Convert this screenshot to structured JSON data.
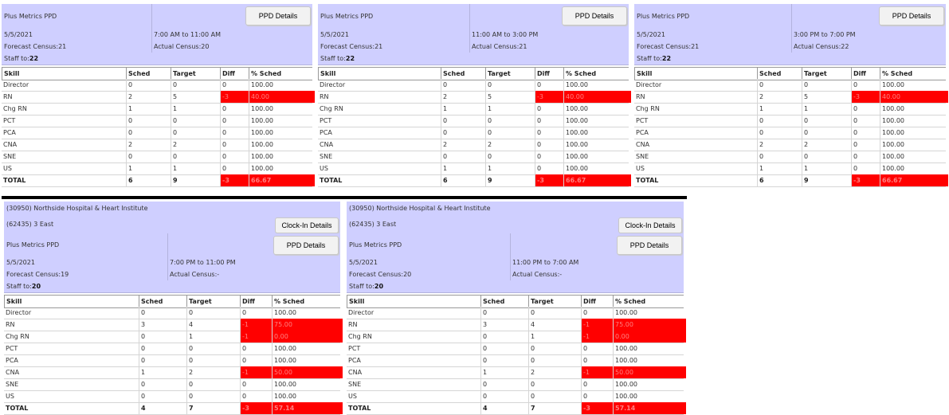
{
  "labels": {
    "plus_metrics": "Plus Metrics PPD",
    "ppd_details": "PPD Details",
    "clock_in_details": "Clock-In Details",
    "forecast_prefix": "Forecast Census: ",
    "actual_prefix": "Actual Census: ",
    "staff_prefix": "Staff to: "
  },
  "columns": [
    "Skill",
    "Sched",
    "Target",
    "Diff",
    "% Sched"
  ],
  "panels": [
    {
      "date": "5/5/2021",
      "shift": "7:00 AM to 11:00 AM",
      "forecast": "21",
      "actual": "20",
      "staff": "22",
      "rows": [
        [
          "Director",
          "0",
          "0",
          "0",
          "100.00",
          false
        ],
        [
          "RN",
          "2",
          "5",
          "-3",
          "40.00",
          true
        ],
        [
          "Chg RN",
          "1",
          "1",
          "0",
          "100.00",
          false
        ],
        [
          "PCT",
          "0",
          "0",
          "0",
          "100.00",
          false
        ],
        [
          "PCA",
          "0",
          "0",
          "0",
          "100.00",
          false
        ],
        [
          "CNA",
          "2",
          "2",
          "0",
          "100.00",
          false
        ],
        [
          "SNE",
          "0",
          "0",
          "0",
          "100.00",
          false
        ],
        [
          "US",
          "1",
          "1",
          "0",
          "100.00",
          false
        ]
      ],
      "total": [
        "TOTAL",
        "6",
        "9",
        "-3",
        "66.67",
        true
      ]
    },
    {
      "date": "5/5/2021",
      "shift": "11:00 AM to 3:00 PM",
      "forecast": "21",
      "actual": "21",
      "staff": "22",
      "rows": [
        [
          "Director",
          "0",
          "0",
          "0",
          "100.00",
          false
        ],
        [
          "RN",
          "2",
          "5",
          "-3",
          "40.00",
          true
        ],
        [
          "Chg RN",
          "1",
          "1",
          "0",
          "100.00",
          false
        ],
        [
          "PCT",
          "0",
          "0",
          "0",
          "100.00",
          false
        ],
        [
          "PCA",
          "0",
          "0",
          "0",
          "100.00",
          false
        ],
        [
          "CNA",
          "2",
          "2",
          "0",
          "100.00",
          false
        ],
        [
          "SNE",
          "0",
          "0",
          "0",
          "100.00",
          false
        ],
        [
          "US",
          "1",
          "1",
          "0",
          "100.00",
          false
        ]
      ],
      "total": [
        "TOTAL",
        "6",
        "9",
        "-3",
        "66.67",
        true
      ]
    },
    {
      "date": "5/5/2021",
      "shift": "3:00 PM to 7:00 PM",
      "forecast": "21",
      "actual": "22",
      "staff": "22",
      "rows": [
        [
          "Director",
          "0",
          "0",
          "0",
          "100.00",
          false
        ],
        [
          "RN",
          "2",
          "5",
          "-3",
          "40.00",
          true
        ],
        [
          "Chg RN",
          "1",
          "1",
          "0",
          "100.00",
          false
        ],
        [
          "PCT",
          "0",
          "0",
          "0",
          "100.00",
          false
        ],
        [
          "PCA",
          "0",
          "0",
          "0",
          "100.00",
          false
        ],
        [
          "CNA",
          "2",
          "2",
          "0",
          "100.00",
          false
        ],
        [
          "SNE",
          "0",
          "0",
          "0",
          "100.00",
          false
        ],
        [
          "US",
          "1",
          "1",
          "0",
          "100.00",
          false
        ]
      ],
      "total": [
        "TOTAL",
        "6",
        "9",
        "-3",
        "66.67",
        true
      ]
    },
    {
      "hospital": "(30950) Northside Hospital & Heart Institute",
      "unit": "(62435) 3 East",
      "date": "5/5/2021",
      "shift": "7:00 PM to 11:00 PM",
      "forecast": "19",
      "actual": "-",
      "staff": "20",
      "rows": [
        [
          "Director",
          "0",
          "0",
          "0",
          "100.00",
          false
        ],
        [
          "RN",
          "3",
          "4",
          "-1",
          "75.00",
          true
        ],
        [
          "Chg RN",
          "0",
          "1",
          "-1",
          "0.00",
          true
        ],
        [
          "PCT",
          "0",
          "0",
          "0",
          "100.00",
          false
        ],
        [
          "PCA",
          "0",
          "0",
          "0",
          "100.00",
          false
        ],
        [
          "CNA",
          "1",
          "2",
          "-1",
          "50.00",
          true
        ],
        [
          "SNE",
          "0",
          "0",
          "0",
          "100.00",
          false
        ],
        [
          "US",
          "0",
          "0",
          "0",
          "100.00",
          false
        ]
      ],
      "total": [
        "TOTAL",
        "4",
        "7",
        "-3",
        "57.14",
        true
      ]
    },
    {
      "hospital": "(30950) Northside Hospital & Heart Institute",
      "unit": "(62435) 3 East",
      "date": "5/5/2021",
      "shift": "11:00 PM to 7:00 AM",
      "forecast": "20",
      "actual": "-",
      "staff": "20",
      "rows": [
        [
          "Director",
          "0",
          "0",
          "0",
          "100.00",
          false
        ],
        [
          "RN",
          "3",
          "4",
          "-1",
          "75.00",
          true
        ],
        [
          "Chg RN",
          "0",
          "1",
          "-1",
          "0.00",
          true
        ],
        [
          "PCT",
          "0",
          "0",
          "0",
          "100.00",
          false
        ],
        [
          "PCA",
          "0",
          "0",
          "0",
          "100.00",
          false
        ],
        [
          "CNA",
          "1",
          "2",
          "-1",
          "50.00",
          true
        ],
        [
          "SNE",
          "0",
          "0",
          "0",
          "100.00",
          false
        ],
        [
          "US",
          "0",
          "0",
          "0",
          "100.00",
          false
        ]
      ],
      "total": [
        "TOTAL",
        "4",
        "7",
        "-3",
        "57.14",
        true
      ]
    }
  ],
  "colors": {
    "header_bg": "#cfcfff",
    "alert_red": "#ff0000"
  }
}
